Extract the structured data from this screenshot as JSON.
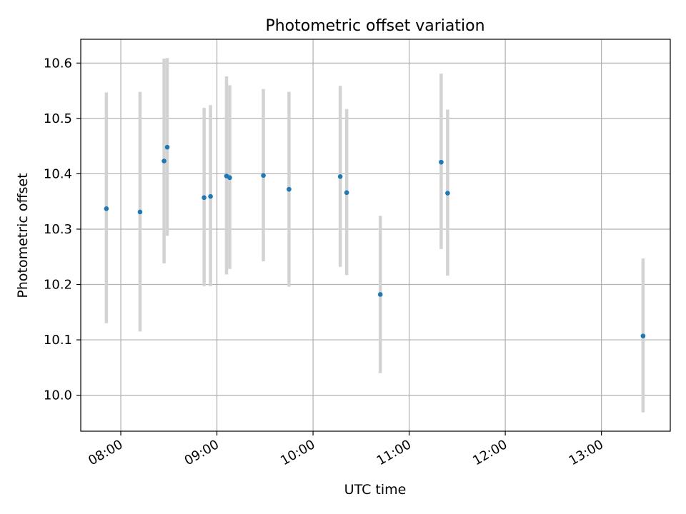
{
  "chart_data": {
    "type": "scatter",
    "title": "Photometric offset variation",
    "xlabel": "UTC time",
    "ylabel": "Photometric offset",
    "x_tick_labels": [
      "08:00",
      "09:00",
      "10:00",
      "11:00",
      "12:00",
      "13:00"
    ],
    "y_ticks": [
      10.0,
      10.1,
      10.2,
      10.3,
      10.4,
      10.5,
      10.6
    ],
    "y_tick_labels": [
      "10.0",
      "10.1",
      "10.2",
      "10.3",
      "10.4",
      "10.5",
      "10.6"
    ],
    "xlim": [
      "07:35",
      "13:43"
    ],
    "ylim": [
      9.935,
      10.643
    ],
    "grid": true,
    "point_color": "#1f77b4",
    "errorbar_color": "#d3d3d3",
    "series": [
      {
        "points": [
          {
            "x": "07:51",
            "y": 10.337,
            "yerr_low": 10.13,
            "yerr_high": 10.547
          },
          {
            "x": "08:12",
            "y": 10.331,
            "yerr_low": 10.115,
            "yerr_high": 10.548
          },
          {
            "x": "08:27",
            "y": 10.423,
            "yerr_low": 10.238,
            "yerr_high": 10.608
          },
          {
            "x": "08:29",
            "y": 10.448,
            "yerr_low": 10.288,
            "yerr_high": 10.609
          },
          {
            "x": "08:52",
            "y": 10.357,
            "yerr_low": 10.197,
            "yerr_high": 10.519
          },
          {
            "x": "08:56",
            "y": 10.359,
            "yerr_low": 10.197,
            "yerr_high": 10.524
          },
          {
            "x": "09:06",
            "y": 10.396,
            "yerr_low": 10.218,
            "yerr_high": 10.576
          },
          {
            "x": "09:08",
            "y": 10.393,
            "yerr_low": 10.228,
            "yerr_high": 10.56
          },
          {
            "x": "09:29",
            "y": 10.397,
            "yerr_low": 10.242,
            "yerr_high": 10.553
          },
          {
            "x": "09:45",
            "y": 10.372,
            "yerr_low": 10.196,
            "yerr_high": 10.548
          },
          {
            "x": "10:17",
            "y": 10.395,
            "yerr_low": 10.232,
            "yerr_high": 10.559
          },
          {
            "x": "10:21",
            "y": 10.366,
            "yerr_low": 10.217,
            "yerr_high": 10.517
          },
          {
            "x": "10:42",
            "y": 10.182,
            "yerr_low": 10.04,
            "yerr_high": 10.324
          },
          {
            "x": "11:20",
            "y": 10.421,
            "yerr_low": 10.264,
            "yerr_high": 10.581
          },
          {
            "x": "11:24",
            "y": 10.365,
            "yerr_low": 10.216,
            "yerr_high": 10.516
          },
          {
            "x": "13:26",
            "y": 10.107,
            "yerr_low": 9.969,
            "yerr_high": 10.247
          }
        ]
      }
    ]
  }
}
